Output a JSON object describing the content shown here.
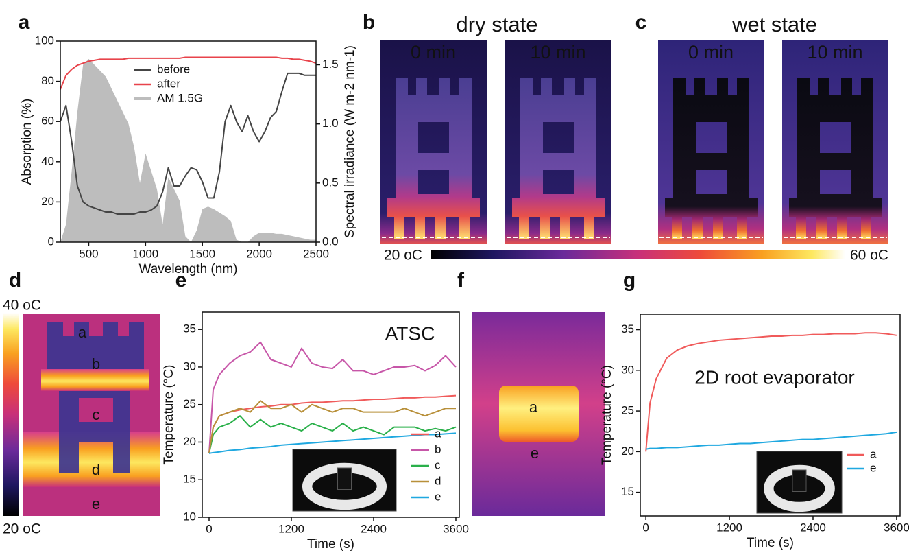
{
  "panel_labels": [
    "a",
    "b",
    "c",
    "d",
    "e",
    "f",
    "g"
  ],
  "thermal": {
    "dry": {
      "title": "dry state",
      "frames": [
        "0 min",
        "10 min"
      ]
    },
    "wet": {
      "title": "wet state",
      "frames": [
        "0 min",
        "10 min"
      ]
    },
    "colorbar": {
      "min": "20 oC",
      "max": "60 oC"
    },
    "d": {
      "max": "40 oC",
      "min": "20 oC",
      "labels": [
        "a",
        "b",
        "c",
        "d",
        "e"
      ]
    },
    "f": {
      "labels": [
        "a",
        "e"
      ]
    }
  },
  "chart_data": [
    {
      "type": "line",
      "xlabel": "Wavelength (nm)",
      "ylabel": "Absorption (%)",
      "y2label": "Spectral irradiance (W m-2 nm-1)",
      "xlim": [
        250,
        2500
      ],
      "xticks": [
        500,
        1000,
        1500,
        2000,
        2500
      ],
      "ylim": [
        0,
        100
      ],
      "yticks": [
        0,
        20,
        40,
        60,
        80,
        100
      ],
      "y2lim": [
        0,
        1.7
      ],
      "y2ticks": [
        {
          "value": 0,
          "label": "0.0"
        },
        0.5,
        {
          "value": 1,
          "label": "1.0"
        },
        1.5
      ],
      "grid": false,
      "legend": "upper center",
      "x": [
        250,
        300,
        350,
        400,
        450,
        500,
        550,
        600,
        650,
        700,
        750,
        800,
        850,
        900,
        950,
        1000,
        1050,
        1100,
        1150,
        1200,
        1250,
        1300,
        1350,
        1400,
        1450,
        1500,
        1550,
        1600,
        1650,
        1700,
        1750,
        1800,
        1850,
        1900,
        1950,
        2000,
        2050,
        2100,
        2150,
        2200,
        2250,
        2300,
        2350,
        2400,
        2450,
        2500
      ],
      "series": [
        {
          "name": "AM 1.5G",
          "color": "#bdbdbd",
          "axis": "y2",
          "style": "area",
          "values": [
            0,
            0.15,
            0.6,
            1.1,
            1.5,
            1.55,
            1.5,
            1.45,
            1.4,
            1.3,
            1.2,
            1.1,
            1.0,
            0.8,
            0.5,
            0.75,
            0.6,
            0.45,
            0.15,
            0.55,
            0.45,
            0.35,
            0.05,
            0,
            0.1,
            0.28,
            0.3,
            0.28,
            0.25,
            0.22,
            0.18,
            0.02,
            0,
            0,
            0.05,
            0.08,
            0.08,
            0.08,
            0.07,
            0.07,
            0.06,
            0.05,
            0.04,
            0.03,
            0.02,
            0.02
          ]
        },
        {
          "name": "before",
          "color": "#454545",
          "values": [
            60,
            68,
            50,
            28,
            20,
            18,
            17,
            16,
            15,
            15,
            14,
            14,
            14,
            14,
            15,
            15,
            16,
            18,
            25,
            37,
            28,
            28,
            33,
            37,
            36,
            30,
            22,
            22,
            35,
            60,
            68,
            60,
            55,
            63,
            55,
            50,
            55,
            62,
            65,
            75,
            84,
            84,
            84,
            83,
            83,
            83
          ]
        },
        {
          "name": "after",
          "color": "#e8434b",
          "values": [
            76,
            83,
            86,
            88,
            89,
            90,
            90.5,
            91,
            91,
            91,
            91,
            91,
            91.5,
            91.5,
            91.5,
            91.5,
            91.5,
            91.5,
            91.5,
            91.5,
            91.5,
            91.5,
            92,
            92,
            92,
            92,
            92,
            92,
            92,
            92,
            92,
            92,
            92,
            92,
            92,
            92,
            92,
            92,
            92,
            91.5,
            91.5,
            91,
            91,
            90.5,
            90,
            89
          ]
        }
      ]
    },
    {
      "type": "line",
      "xlabel": "Time (s)",
      "ylabel": "Temperature (°C)",
      "annotation": "ATSC",
      "xlim": [
        -100,
        3650
      ],
      "xticks": [
        0,
        1200,
        2400,
        3600
      ],
      "ylim": [
        10,
        37.3
      ],
      "yticks": [
        10,
        15,
        20,
        25,
        30,
        35
      ],
      "grid": false,
      "legend": "lower right",
      "x": [
        0,
        60,
        150,
        300,
        450,
        600,
        750,
        900,
        1050,
        1200,
        1350,
        1500,
        1650,
        1800,
        1950,
        2100,
        2250,
        2400,
        2550,
        2700,
        2850,
        3000,
        3150,
        3300,
        3450,
        3600
      ],
      "series": [
        {
          "name": "a",
          "color": "#f05a5a",
          "values": [
            18.5,
            22,
            23.5,
            24,
            24.3,
            24.5,
            24.7,
            24.8,
            25,
            25,
            25.2,
            25.3,
            25.3,
            25.4,
            25.5,
            25.5,
            25.6,
            25.7,
            25.7,
            25.8,
            25.9,
            25.9,
            26,
            26,
            26.1,
            26.2
          ]
        },
        {
          "name": "b",
          "color": "#c756a8",
          "values": [
            18.5,
            27,
            29,
            30.5,
            31.5,
            32,
            33.3,
            31,
            30.5,
            30,
            32.5,
            30.5,
            30,
            29.8,
            31,
            29.5,
            29.5,
            29,
            29.5,
            30,
            30,
            30.2,
            29.5,
            30.2,
            31.5,
            30
          ]
        },
        {
          "name": "c",
          "color": "#2ab04a",
          "values": [
            18.5,
            21,
            22,
            22.5,
            23.5,
            22,
            23,
            22,
            22.5,
            22,
            21.5,
            22.5,
            22,
            21.5,
            22.5,
            21.5,
            22,
            21.5,
            21,
            22,
            22,
            22,
            21.5,
            21.8,
            21.5,
            22
          ]
        },
        {
          "name": "d",
          "color": "#b8903a",
          "values": [
            18.5,
            22,
            23.5,
            24,
            24.5,
            24,
            25.5,
            24.5,
            24.5,
            25,
            24,
            25,
            24.5,
            24,
            24.5,
            24.5,
            24,
            24,
            24,
            24,
            24.5,
            24,
            23.5,
            24,
            24.5,
            24.5
          ]
        },
        {
          "name": "e",
          "color": "#1fa8e0",
          "values": [
            18.5,
            18.6,
            18.7,
            18.9,
            19,
            19.2,
            19.3,
            19.4,
            19.6,
            19.7,
            19.8,
            19.9,
            20,
            20.1,
            20.2,
            20.3,
            20.4,
            20.5,
            20.6,
            20.7,
            20.8,
            20.9,
            21,
            21,
            21.1,
            21.2
          ]
        }
      ]
    },
    {
      "type": "line",
      "xlabel": "Time (s)",
      "ylabel": "Temperature (°C)",
      "annotation": "2D root evaporator",
      "xlim": [
        -80,
        3650
      ],
      "xticks": [
        0,
        1200,
        2400,
        3600
      ],
      "ylim": [
        12.1,
        36.9
      ],
      "yticks": [
        15,
        20,
        25,
        30,
        35
      ],
      "grid": false,
      "legend": "lower right",
      "x": [
        0,
        60,
        150,
        300,
        450,
        600,
        750,
        900,
        1050,
        1200,
        1350,
        1500,
        1650,
        1800,
        1950,
        2100,
        2250,
        2400,
        2550,
        2700,
        2850,
        3000,
        3150,
        3300,
        3450,
        3600
      ],
      "series": [
        {
          "name": "a",
          "color": "#f05a5a",
          "values": [
            20,
            26,
            29,
            31.5,
            32.5,
            33,
            33.3,
            33.5,
            33.7,
            33.8,
            33.9,
            34,
            34.1,
            34.2,
            34.2,
            34.3,
            34.3,
            34.4,
            34.4,
            34.5,
            34.5,
            34.5,
            34.6,
            34.6,
            34.5,
            34.3
          ]
        },
        {
          "name": "e",
          "color": "#1fa8e0",
          "values": [
            20.3,
            20.4,
            20.4,
            20.5,
            20.5,
            20.6,
            20.7,
            20.8,
            20.8,
            20.9,
            21,
            21,
            21.1,
            21.2,
            21.3,
            21.4,
            21.5,
            21.5,
            21.6,
            21.7,
            21.8,
            21.9,
            22,
            22.1,
            22.2,
            22.4
          ]
        }
      ]
    }
  ]
}
